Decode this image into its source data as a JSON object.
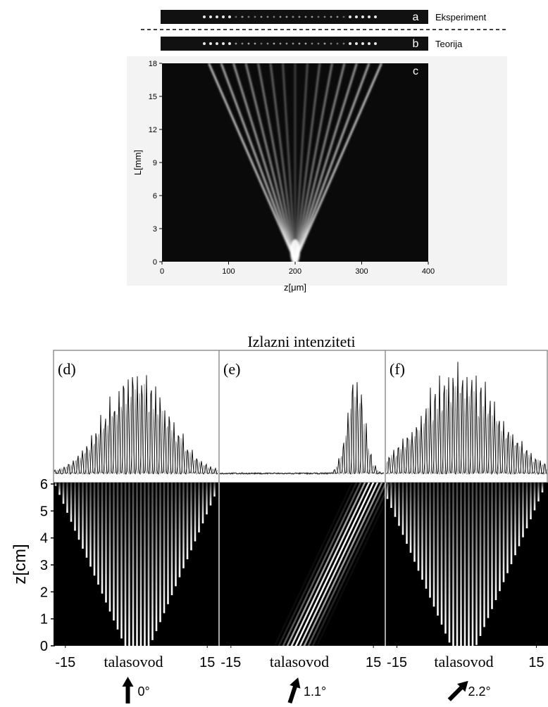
{
  "strips": [
    {
      "letter": "a",
      "label": "Eksperiment"
    },
    {
      "letter": "b",
      "label": "Teorija"
    }
  ],
  "panel_c": {
    "letter": "c",
    "xlabel": "z[μm]",
    "ylabel": "L[mm]",
    "xlim": [
      0,
      400
    ],
    "xticks": [
      0,
      100,
      200,
      300,
      400
    ],
    "ylim": [
      0,
      18
    ],
    "yticks": [
      0,
      3,
      6,
      9,
      12,
      15,
      18
    ]
  },
  "title": "Izlazni intenziteti",
  "zlabel": "z[cm]",
  "zlim": [
    0,
    6
  ],
  "zticks": [
    0,
    1,
    2,
    3,
    4,
    5,
    6
  ],
  "panels": [
    {
      "label": "(d)",
      "xlim": [
        -17.5,
        17.5
      ],
      "xticks": [
        -15,
        15
      ],
      "xlabel": "talasovod",
      "angle": "0°"
    },
    {
      "label": "(e)",
      "xlim": [
        -17.5,
        17.5
      ],
      "xticks": [
        -15,
        15
      ],
      "xlabel": "talasovod",
      "angle": "1.1°"
    },
    {
      "label": "(f)",
      "xlim": [
        -17.5,
        17.5
      ],
      "xticks": [
        -15,
        15
      ],
      "xlabel": "talasovod",
      "angle": "2.2°"
    }
  ]
}
